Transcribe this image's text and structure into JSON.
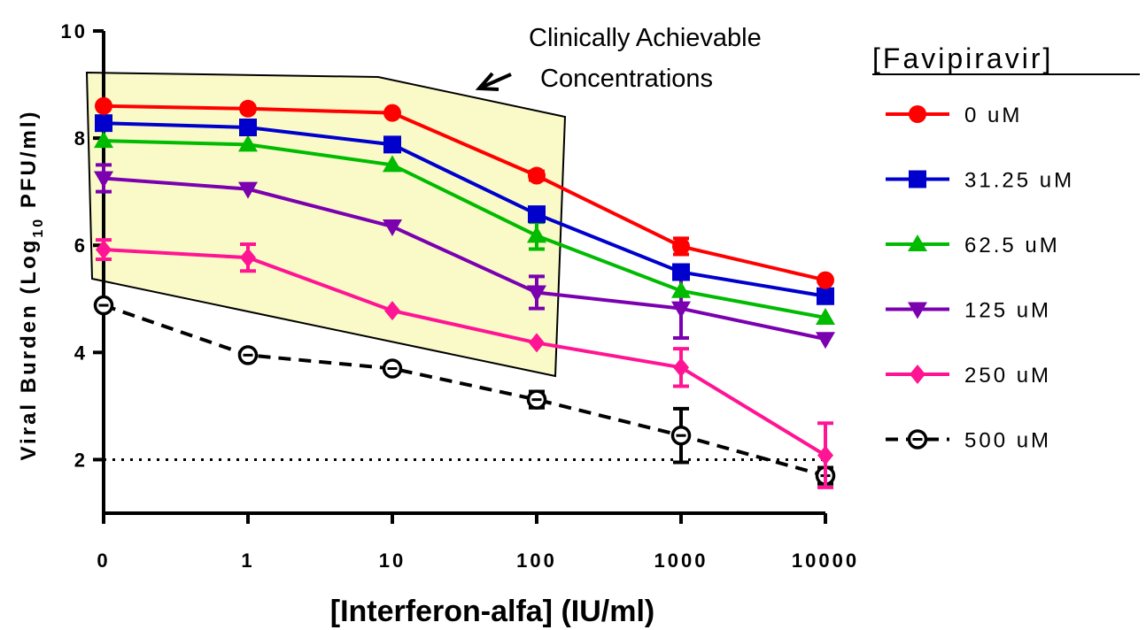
{
  "chart_data": {
    "type": "line",
    "xlabel": "[Interferon-alfa] (IU/ml)",
    "ylabel_main": "Viral Burden (Log",
    "ylabel_sub": "10",
    "ylabel_end": " PFU/ml)",
    "x_tick_labels": [
      "0",
      "1",
      "10",
      "100",
      "1000",
      "10000"
    ],
    "y_ticks": [
      2,
      4,
      6,
      8,
      10
    ],
    "ylim": [
      1,
      10
    ],
    "legend_title": "[Favipiravir]",
    "legend_position": "right",
    "reference_line": {
      "y": 2,
      "style": "dotted"
    },
    "annotation": {
      "line1": "Clinically Achievable",
      "line2": "Concentrations"
    },
    "series": [
      {
        "name": "0 uM",
        "color": "#ff0000",
        "marker": "circle",
        "line": "solid",
        "values": [
          8.6,
          8.55,
          8.47,
          7.3,
          5.98,
          5.35
        ],
        "errors": [
          0.05,
          0.05,
          0.05,
          0.08,
          0.15,
          0.05
        ]
      },
      {
        "name": "31.25 uM",
        "color": "#0000cc",
        "marker": "square",
        "line": "solid",
        "values": [
          8.28,
          8.2,
          7.88,
          6.58,
          5.5,
          5.05
        ],
        "errors": [
          0.05,
          0.05,
          0.05,
          0.05,
          0.05,
          0.05
        ]
      },
      {
        "name": "62.5 uM",
        "color": "#00bb00",
        "marker": "triangle-up",
        "line": "solid",
        "values": [
          7.95,
          7.88,
          7.5,
          6.18,
          5.15,
          4.65
        ],
        "errors": [
          0.05,
          0.05,
          0.05,
          0.25,
          0.05,
          0.05
        ]
      },
      {
        "name": "125 uM",
        "color": "#7a00b0",
        "marker": "triangle-down",
        "line": "solid",
        "values": [
          7.25,
          7.05,
          6.35,
          5.12,
          4.82,
          4.25
        ],
        "errors": [
          0.25,
          0.05,
          0.05,
          0.3,
          0.55,
          0.05
        ]
      },
      {
        "name": "250 uM",
        "color": "#ff1493",
        "marker": "diamond",
        "line": "solid",
        "values": [
          5.92,
          5.77,
          4.78,
          4.18,
          3.72,
          2.08
        ],
        "errors": [
          0.18,
          0.25,
          0.05,
          0.05,
          0.35,
          0.6
        ]
      },
      {
        "name": "500 uM",
        "color": "#000000",
        "marker": "open-circle",
        "line": "dashed",
        "values": [
          4.88,
          3.95,
          3.7,
          3.12,
          2.45,
          1.7
        ],
        "errors": [
          0.05,
          0.05,
          0.05,
          0.15,
          0.5,
          0.15
        ]
      }
    ]
  }
}
